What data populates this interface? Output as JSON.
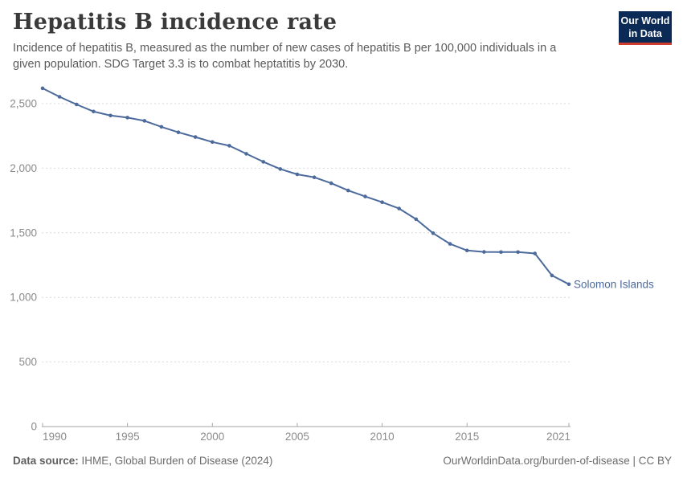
{
  "header": {
    "title": "Hepatitis B incidence rate",
    "subtitle": "Incidence of hepatitis B, measured as the number of new cases of hepatitis B per 100,000 individuals in a given population. SDG Target 3.3 is to combat heptatitis by 2030.",
    "logo": {
      "line1": "Our World",
      "line2": "in Data"
    }
  },
  "footer": {
    "source_label": "Data source:",
    "source_text": "IHME, Global Burden of Disease (2024)",
    "credit": "OurWorldinData.org/burden-of-disease | CC BY"
  },
  "colors": {
    "line": "#4C6A9C",
    "grid": "#d9d9d9",
    "axis": "#a5a5a5",
    "tick_text": "#8b8b8b",
    "logo_navy": "#0b2a55",
    "logo_red": "#cf3d2e"
  },
  "chart_data": {
    "type": "line",
    "title": "Hepatitis B incidence rate",
    "xlabel": "",
    "ylabel": "",
    "grid": "horizontal-dashed",
    "legend": "inline-entity-label",
    "xlim": [
      1990,
      2021
    ],
    "ylim": [
      0,
      2600
    ],
    "x": [
      1990,
      1991,
      1992,
      1993,
      1994,
      1995,
      1996,
      1997,
      1998,
      1999,
      2000,
      2001,
      2002,
      2003,
      2004,
      2005,
      2006,
      2007,
      2008,
      2009,
      2010,
      2011,
      2012,
      2013,
      2014,
      2015,
      2016,
      2017,
      2018,
      2019,
      2020,
      2021
    ],
    "series": [
      {
        "name": "Solomon Islands",
        "color": "#4C6A9C",
        "values": [
          2619,
          2553,
          2494,
          2439,
          2408,
          2392,
          2367,
          2320,
          2278,
          2241,
          2203,
          2174,
          2112,
          2050,
          1994,
          1953,
          1930,
          1884,
          1828,
          1781,
          1737,
          1688,
          1605,
          1497,
          1414,
          1363,
          1352,
          1351,
          1351,
          1340,
          1170,
          1102
        ]
      }
    ],
    "x_ticks": [
      1990,
      1995,
      2000,
      2005,
      2010,
      2015,
      2021
    ],
    "y_ticks": [
      0,
      500,
      1000,
      1500,
      2000,
      2500
    ],
    "y_tick_labels": [
      "0",
      "500",
      "1,000",
      "1,500",
      "2,000",
      "2,500"
    ]
  }
}
